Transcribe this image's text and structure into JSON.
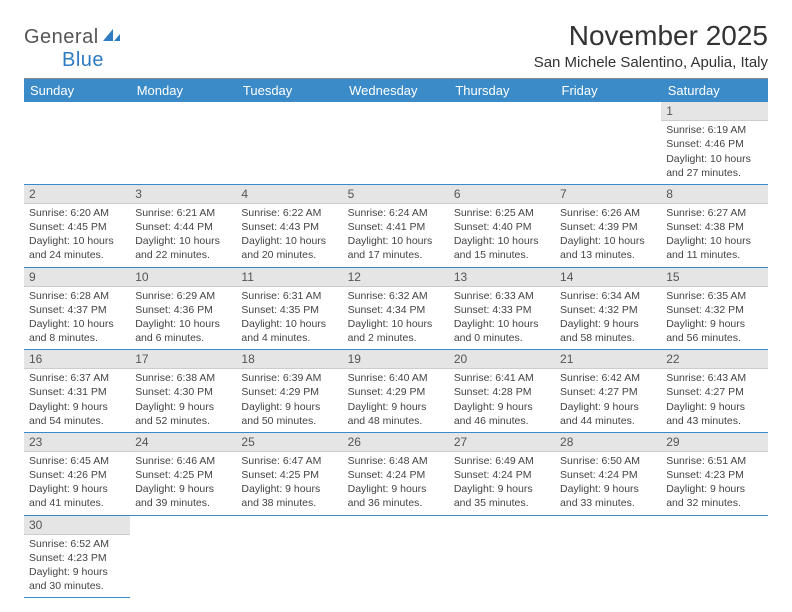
{
  "logo": {
    "part1": "General",
    "part2": "Blue"
  },
  "title": "November 2025",
  "location": "San Michele Salentino, Apulia, Italy",
  "day_headers": [
    "Sunday",
    "Monday",
    "Tuesday",
    "Wednesday",
    "Thursday",
    "Friday",
    "Saturday"
  ],
  "colors": {
    "header_bg": "#3b8bc9",
    "header_text": "#ffffff",
    "daynum_bg": "#e5e5e5",
    "rule": "#3b8bc9"
  },
  "weeks": [
    [
      null,
      null,
      null,
      null,
      null,
      null,
      {
        "n": "1",
        "sunrise": "6:19 AM",
        "sunset": "4:46 PM",
        "daylight": "10 hours and 27 minutes."
      }
    ],
    [
      {
        "n": "2",
        "sunrise": "6:20 AM",
        "sunset": "4:45 PM",
        "daylight": "10 hours and 24 minutes."
      },
      {
        "n": "3",
        "sunrise": "6:21 AM",
        "sunset": "4:44 PM",
        "daylight": "10 hours and 22 minutes."
      },
      {
        "n": "4",
        "sunrise": "6:22 AM",
        "sunset": "4:43 PM",
        "daylight": "10 hours and 20 minutes."
      },
      {
        "n": "5",
        "sunrise": "6:24 AM",
        "sunset": "4:41 PM",
        "daylight": "10 hours and 17 minutes."
      },
      {
        "n": "6",
        "sunrise": "6:25 AM",
        "sunset": "4:40 PM",
        "daylight": "10 hours and 15 minutes."
      },
      {
        "n": "7",
        "sunrise": "6:26 AM",
        "sunset": "4:39 PM",
        "daylight": "10 hours and 13 minutes."
      },
      {
        "n": "8",
        "sunrise": "6:27 AM",
        "sunset": "4:38 PM",
        "daylight": "10 hours and 11 minutes."
      }
    ],
    [
      {
        "n": "9",
        "sunrise": "6:28 AM",
        "sunset": "4:37 PM",
        "daylight": "10 hours and 8 minutes."
      },
      {
        "n": "10",
        "sunrise": "6:29 AM",
        "sunset": "4:36 PM",
        "daylight": "10 hours and 6 minutes."
      },
      {
        "n": "11",
        "sunrise": "6:31 AM",
        "sunset": "4:35 PM",
        "daylight": "10 hours and 4 minutes."
      },
      {
        "n": "12",
        "sunrise": "6:32 AM",
        "sunset": "4:34 PM",
        "daylight": "10 hours and 2 minutes."
      },
      {
        "n": "13",
        "sunrise": "6:33 AM",
        "sunset": "4:33 PM",
        "daylight": "10 hours and 0 minutes."
      },
      {
        "n": "14",
        "sunrise": "6:34 AM",
        "sunset": "4:32 PM",
        "daylight": "9 hours and 58 minutes."
      },
      {
        "n": "15",
        "sunrise": "6:35 AM",
        "sunset": "4:32 PM",
        "daylight": "9 hours and 56 minutes."
      }
    ],
    [
      {
        "n": "16",
        "sunrise": "6:37 AM",
        "sunset": "4:31 PM",
        "daylight": "9 hours and 54 minutes."
      },
      {
        "n": "17",
        "sunrise": "6:38 AM",
        "sunset": "4:30 PM",
        "daylight": "9 hours and 52 minutes."
      },
      {
        "n": "18",
        "sunrise": "6:39 AM",
        "sunset": "4:29 PM",
        "daylight": "9 hours and 50 minutes."
      },
      {
        "n": "19",
        "sunrise": "6:40 AM",
        "sunset": "4:29 PM",
        "daylight": "9 hours and 48 minutes."
      },
      {
        "n": "20",
        "sunrise": "6:41 AM",
        "sunset": "4:28 PM",
        "daylight": "9 hours and 46 minutes."
      },
      {
        "n": "21",
        "sunrise": "6:42 AM",
        "sunset": "4:27 PM",
        "daylight": "9 hours and 44 minutes."
      },
      {
        "n": "22",
        "sunrise": "6:43 AM",
        "sunset": "4:27 PM",
        "daylight": "9 hours and 43 minutes."
      }
    ],
    [
      {
        "n": "23",
        "sunrise": "6:45 AM",
        "sunset": "4:26 PM",
        "daylight": "9 hours and 41 minutes."
      },
      {
        "n": "24",
        "sunrise": "6:46 AM",
        "sunset": "4:25 PM",
        "daylight": "9 hours and 39 minutes."
      },
      {
        "n": "25",
        "sunrise": "6:47 AM",
        "sunset": "4:25 PM",
        "daylight": "9 hours and 38 minutes."
      },
      {
        "n": "26",
        "sunrise": "6:48 AM",
        "sunset": "4:24 PM",
        "daylight": "9 hours and 36 minutes."
      },
      {
        "n": "27",
        "sunrise": "6:49 AM",
        "sunset": "4:24 PM",
        "daylight": "9 hours and 35 minutes."
      },
      {
        "n": "28",
        "sunrise": "6:50 AM",
        "sunset": "4:24 PM",
        "daylight": "9 hours and 33 minutes."
      },
      {
        "n": "29",
        "sunrise": "6:51 AM",
        "sunset": "4:23 PM",
        "daylight": "9 hours and 32 minutes."
      }
    ],
    [
      {
        "n": "30",
        "sunrise": "6:52 AM",
        "sunset": "4:23 PM",
        "daylight": "9 hours and 30 minutes."
      },
      null,
      null,
      null,
      null,
      null,
      null
    ]
  ],
  "labels": {
    "sunrise": "Sunrise:",
    "sunset": "Sunset:",
    "daylight": "Daylight:"
  }
}
